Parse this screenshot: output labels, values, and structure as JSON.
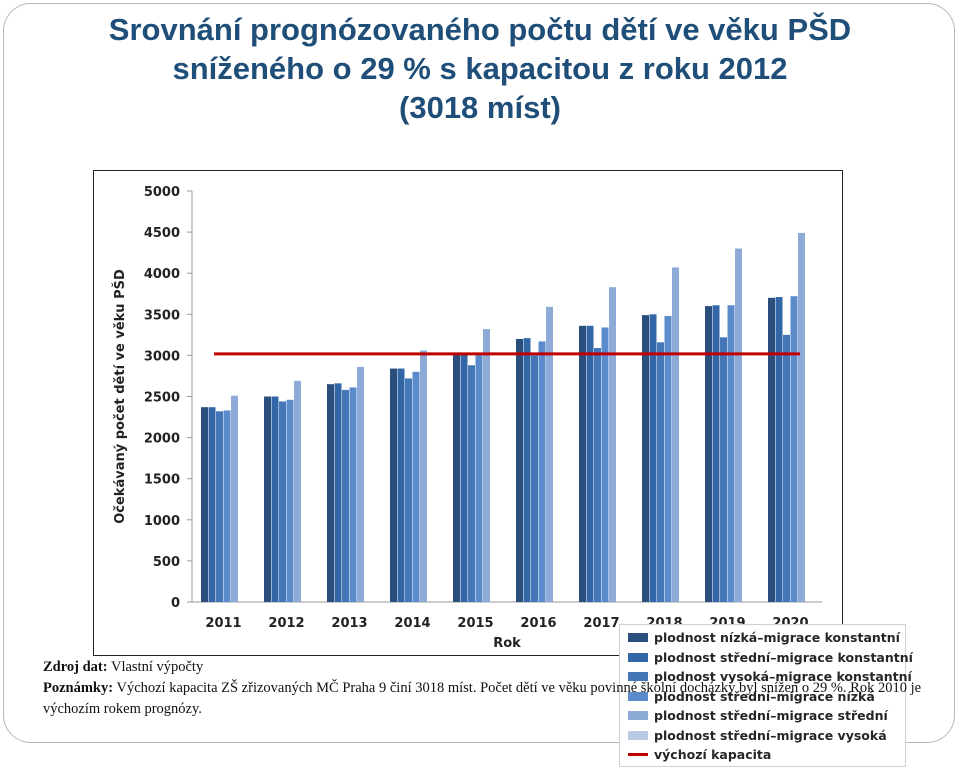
{
  "title": {
    "line1": "Srovnání prognózovaného počtu dětí ve věku PŠD",
    "line2": "sníženého o 29 % s kapacitou z roku 2012",
    "line3": "(3018 míst)"
  },
  "notes": {
    "source_label": "Zdroj dat:",
    "source_text": "Vlastní výpočty",
    "remarks_label": "Poznámky:",
    "remarks_text": "Výchozí kapacita ZŠ zřizovaných MČ Praha 9 činí 3018 míst. Počet dětí ve věku povinné školní docházky byl snížen o 29 %. Rok 2010 je výchozím rokem prognózy."
  },
  "chart_data": {
    "type": "bar",
    "xlabel": "Rok",
    "ylabel": "Očekávaný počet dětí ve věku PŠD",
    "ylim": [
      0,
      5000
    ],
    "yticks": [
      0,
      500,
      1000,
      1500,
      2000,
      2500,
      3000,
      3500,
      4000,
      4500,
      5000
    ],
    "categories": [
      "2011",
      "2012",
      "2013",
      "2014",
      "2015",
      "2016",
      "2017",
      "2018",
      "2019",
      "2020"
    ],
    "grid": false,
    "legend_position": "bottom-right",
    "series": [
      {
        "name": "plodnost nízká–migrace konstantní",
        "color": "#2b4f7c",
        "values": [
          2370,
          2500,
          2650,
          2840,
          3030,
          3200,
          3360,
          3490,
          3600,
          3700
        ]
      },
      {
        "name": "plodnost střední–migrace konstantní",
        "color": "#3366a6",
        "values": [
          2370,
          2500,
          2660,
          2840,
          3030,
          3210,
          3360,
          3500,
          3610,
          3710
        ]
      },
      {
        "name": "plodnost vysoká–migrace konstantní",
        "color": "#4577b8",
        "values": [
          2320,
          2440,
          2580,
          2720,
          2880,
          3000,
          3090,
          3160,
          3220,
          3250
        ]
      },
      {
        "name": "plodnost střední–migrace nízká",
        "color": "#5b8bcb",
        "values": [
          2330,
          2460,
          2610,
          2800,
          3000,
          3170,
          3340,
          3480,
          3610,
          3720
        ]
      },
      {
        "name": "plodnost střední–migrace střední",
        "color": "#8eaad6",
        "values": [
          2510,
          2690,
          2860,
          3060,
          3320,
          3590,
          3830,
          4070,
          4300,
          4490
        ]
      },
      {
        "name": "plodnost střední–migrace vysoká",
        "color": "#bac9e4",
        "values": [
          null,
          null,
          null,
          null,
          null,
          null,
          null,
          null,
          null,
          null
        ]
      }
    ],
    "reference_line": {
      "name": "výchozí kapacita",
      "value": 3018,
      "color": "#c00000"
    }
  }
}
